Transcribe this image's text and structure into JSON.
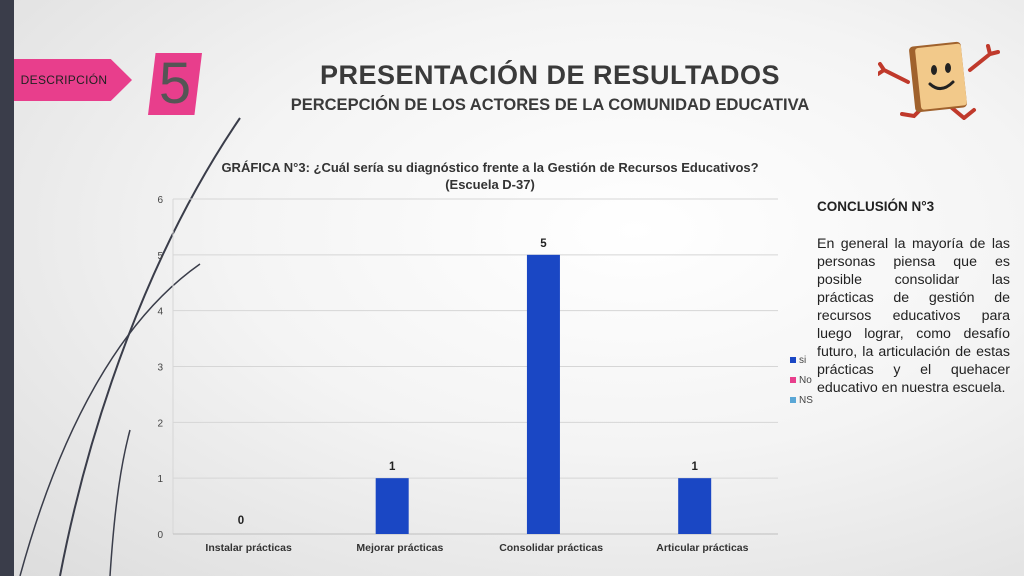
{
  "header": {
    "tag_label": "DESCRIPCIÓN",
    "step_number": "5",
    "title": "PRESENTACIÓN DE RESULTADOS",
    "subtitle": "PERCEPCIÓN DE LOS ACTORES DE LA COMUNIDAD EDUCATIVA"
  },
  "conclusion": {
    "title": "CONCLUSIÓN N°3",
    "text": "En general la mayoría de las personas piensa que es posible consolidar las prácticas de gestión de recursos educativos para luego lograr, como desafío futuro, la articulación de estas prácticas y el quehacer educativo en nuestra escuela."
  },
  "colors": {
    "accent": "#e83e8c",
    "bar_si": "#1a47c4",
    "legend_no": "#e83e8c",
    "legend_ns": "#5aa7d6"
  },
  "chart_data": {
    "type": "bar",
    "title": "GRÁFICA N°3: ¿Cuál sería su diagnóstico frente a la Gestión de Recursos Educativos?",
    "subtitle": "(Escuela D-37)",
    "categories": [
      "Instalar prácticas",
      "Mejorar prácticas",
      "Consolidar prácticas",
      "Articular prácticas"
    ],
    "series": [
      {
        "name": "si",
        "values": [
          0,
          1,
          5,
          1
        ]
      },
      {
        "name": "No",
        "values": [
          null,
          null,
          null,
          null
        ]
      },
      {
        "name": "NS",
        "values": [
          null,
          null,
          null,
          null
        ]
      }
    ],
    "data_labels": [
      "0",
      "1",
      "5",
      "1"
    ],
    "y_ticks": [
      0,
      1,
      2,
      3,
      4,
      5,
      6
    ],
    "ylim": [
      0,
      6
    ],
    "grid": true,
    "legend_position": "right"
  }
}
